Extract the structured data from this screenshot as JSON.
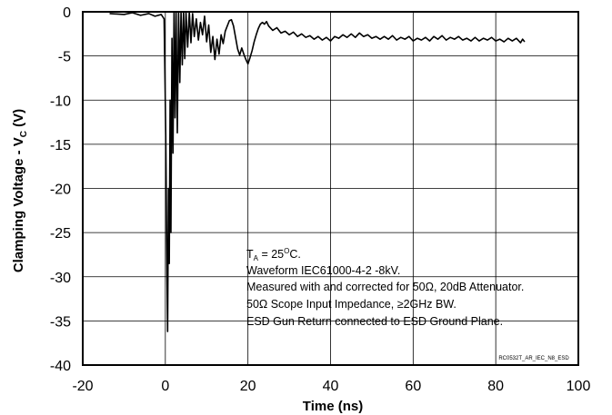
{
  "chart_data": {
    "type": "line",
    "xlabel": "Time (ns)",
    "ylabel_main": "Clamping Voltage - V",
    "ylabel_sub": "C",
    "ylabel_unit": " (V)",
    "xlim": [
      -20,
      100
    ],
    "ylim": [
      -40,
      0
    ],
    "xticks": [
      "-20",
      "0",
      "20",
      "40",
      "60",
      "80",
      "100"
    ],
    "yticks": [
      "0",
      "-5",
      "-10",
      "-15",
      "-20",
      "-25",
      "-30",
      "-35",
      "-40"
    ],
    "grid": true,
    "series": [
      {
        "color": "#000000",
        "points": [
          [
            -13.5,
            -0.2
          ],
          [
            -10,
            -0.3
          ],
          [
            -8,
            -0.1
          ],
          [
            -6,
            -0.4
          ],
          [
            -4,
            -0.2
          ],
          [
            -2.5,
            -0.5
          ],
          [
            -1,
            -0.3
          ],
          [
            -0.3,
            -0.8
          ],
          [
            0.1,
            -14
          ],
          [
            0.4,
            -30
          ],
          [
            0.55,
            -36.2
          ],
          [
            0.75,
            -20
          ],
          [
            0.95,
            -28.5
          ],
          [
            1.15,
            -10
          ],
          [
            1.35,
            -25
          ],
          [
            1.6,
            -3
          ],
          [
            1.85,
            -16
          ],
          [
            2.1,
            0
          ],
          [
            2.35,
            -12
          ],
          [
            2.6,
            0
          ],
          [
            2.9,
            -13.7
          ],
          [
            3.2,
            0
          ],
          [
            3.5,
            -8
          ],
          [
            3.8,
            0
          ],
          [
            4.1,
            -6
          ],
          [
            4.4,
            0
          ],
          [
            4.7,
            -5.3
          ],
          [
            5.0,
            0
          ],
          [
            5.4,
            -4
          ],
          [
            5.8,
            0
          ],
          [
            6.2,
            -3.5
          ],
          [
            6.6,
            -0.2
          ],
          [
            7.0,
            -2.8
          ],
          [
            7.5,
            -0.8
          ],
          [
            8.0,
            -3.2
          ],
          [
            8.5,
            -1.2
          ],
          [
            9.0,
            -2.6
          ],
          [
            9.5,
            -0.5
          ],
          [
            10.0,
            -3.4
          ],
          [
            10.5,
            -1.5
          ],
          [
            11.0,
            -4.6
          ],
          [
            11.5,
            -2.8
          ],
          [
            12.0,
            -5.4
          ],
          [
            12.5,
            -3.1
          ],
          [
            13.0,
            -4.8
          ],
          [
            13.5,
            -2.6
          ],
          [
            14.0,
            -3.6
          ],
          [
            14.5,
            -2.2
          ],
          [
            15.0,
            -1.6
          ],
          [
            15.5,
            -1.0
          ],
          [
            16.0,
            -0.9
          ],
          [
            16.5,
            -1.6
          ],
          [
            17.0,
            -2.9
          ],
          [
            17.5,
            -4.2
          ],
          [
            18.0,
            -4.9
          ],
          [
            18.5,
            -4.1
          ],
          [
            19.0,
            -4.8
          ],
          [
            19.5,
            -5.4
          ],
          [
            20.0,
            -5.9
          ],
          [
            20.5,
            -5.2
          ],
          [
            21.0,
            -4.4
          ],
          [
            21.5,
            -3.4
          ],
          [
            22.0,
            -2.6
          ],
          [
            22.5,
            -1.9
          ],
          [
            23.0,
            -1.4
          ],
          [
            23.5,
            -1.2
          ],
          [
            24.0,
            -1.4
          ],
          [
            24.5,
            -1.1
          ],
          [
            25.0,
            -1.6
          ],
          [
            26.0,
            -2.1
          ],
          [
            27.0,
            -1.8
          ],
          [
            28.0,
            -2.4
          ],
          [
            29.0,
            -2.2
          ],
          [
            30.0,
            -2.6
          ],
          [
            31.0,
            -2.3
          ],
          [
            32.0,
            -2.8
          ],
          [
            33.0,
            -2.5
          ],
          [
            34.0,
            -2.9
          ],
          [
            35.0,
            -2.7
          ],
          [
            36.0,
            -3.1
          ],
          [
            37.0,
            -2.8
          ],
          [
            38.0,
            -3.2
          ],
          [
            39.0,
            -2.9
          ],
          [
            40.0,
            -3.3
          ],
          [
            41.0,
            -2.8
          ],
          [
            42.0,
            -3.0
          ],
          [
            43.0,
            -2.6
          ],
          [
            44.0,
            -2.9
          ],
          [
            45.0,
            -2.5
          ],
          [
            46.0,
            -2.9
          ],
          [
            47.0,
            -2.4
          ],
          [
            48.0,
            -2.8
          ],
          [
            49.0,
            -2.6
          ],
          [
            50.0,
            -3.0
          ],
          [
            51.0,
            -2.8
          ],
          [
            52.0,
            -3.1
          ],
          [
            53.0,
            -2.8
          ],
          [
            54.0,
            -3.1
          ],
          [
            55.0,
            -2.7
          ],
          [
            56.0,
            -3.2
          ],
          [
            57.0,
            -2.9
          ],
          [
            58.0,
            -3.1
          ],
          [
            59.0,
            -2.8
          ],
          [
            60.0,
            -3.3
          ],
          [
            61.0,
            -3.0
          ],
          [
            62.0,
            -3.2
          ],
          [
            63.0,
            -2.9
          ],
          [
            64.0,
            -3.3
          ],
          [
            65.0,
            -2.8
          ],
          [
            66.0,
            -3.1
          ],
          [
            67.0,
            -2.7
          ],
          [
            68.0,
            -3.2
          ],
          [
            69.0,
            -2.9
          ],
          [
            70.0,
            -3.1
          ],
          [
            71.0,
            -2.8
          ],
          [
            72.0,
            -3.2
          ],
          [
            73.0,
            -3.0
          ],
          [
            74.0,
            -3.3
          ],
          [
            75.0,
            -2.9
          ],
          [
            76.0,
            -3.3
          ],
          [
            77.0,
            -3.0
          ],
          [
            78.0,
            -3.2
          ],
          [
            79.0,
            -2.9
          ],
          [
            80.0,
            -3.3
          ],
          [
            81.0,
            -3.1
          ],
          [
            82.0,
            -3.4
          ],
          [
            83.0,
            -3.0
          ],
          [
            84.0,
            -3.3
          ],
          [
            85.0,
            -3.0
          ],
          [
            86.0,
            -3.5
          ],
          [
            86.5,
            -3.1
          ],
          [
            87.0,
            -3.4
          ]
        ]
      }
    ],
    "annotations": {
      "ta_main": "T",
      "ta_sub": "A",
      "ta_mid": " = 25",
      "ta_sup": "O",
      "ta_end": "C.",
      "lines": [
        "Waveform IEC61000-4-2 -8kV.",
        "Measured with and corrected for 50Ω, 20dB Attenuator.",
        "50Ω Scope Input Impedance, ≥2GHz BW.",
        "ESD Gun Return connected to ESD Ground Plane."
      ],
      "figure_id": "RC0532T_AR_IEC_N8_ESD"
    }
  }
}
